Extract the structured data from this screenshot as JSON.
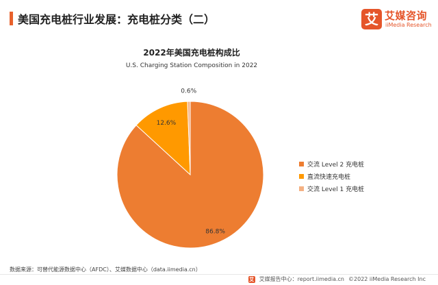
{
  "header": {
    "title": "美国充电桩行业发展：充电桩分类（二）",
    "accent_color": "#e8612c"
  },
  "logo": {
    "mark": "艾",
    "name_cn": "艾媒咨询",
    "name_en": "iiMedia Research",
    "color": "#e5552a"
  },
  "chart_data": {
    "type": "pie",
    "title": "2022年美国充电桩构成比",
    "subtitle": "U.S. Charging Station Composition in 2022",
    "slices": [
      {
        "label": "交流 Level 2 充电桩",
        "value": 86.8,
        "display": "86.8%",
        "color": "#ed7d31"
      },
      {
        "label": "直流快速充电桩",
        "value": 12.6,
        "display": "12.6%",
        "color": "#ff9900"
      },
      {
        "label": "交流 Level 1 充电桩",
        "value": 0.6,
        "display": "0.6%",
        "color": "#f4b183"
      }
    ],
    "legend_position": "right"
  },
  "source": "数据来源：可替代能源数据中心（AFDC）、艾媒数据中心（data.iimedia.cn）",
  "footer": {
    "mark": "艾",
    "report": "艾媒报告中心：report.iimedia.cn",
    "copyright": "©2022  iiMedia Research  Inc"
  }
}
